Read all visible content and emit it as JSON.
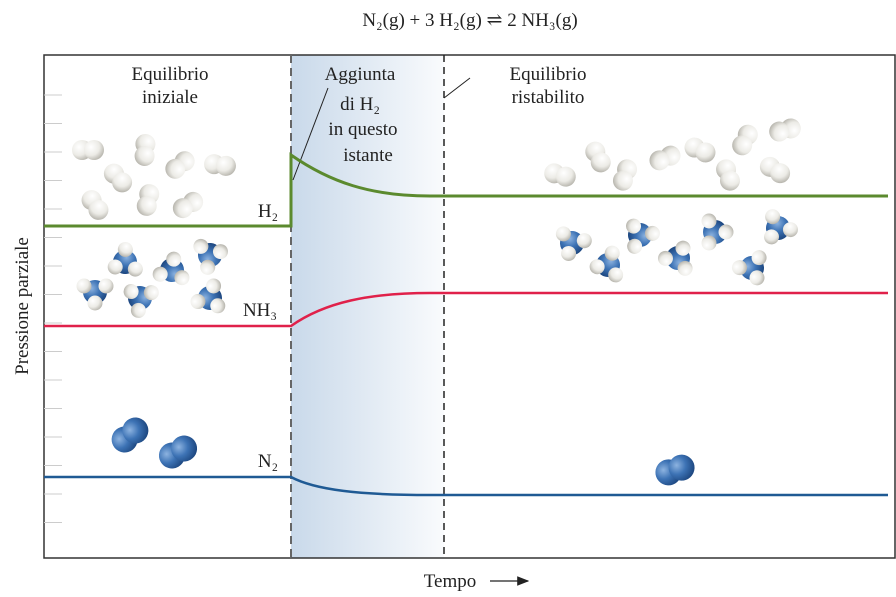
{
  "title": "N₂(g) + 3 H₂(g) ⇌ 2 NH₃(g)",
  "annotations": {
    "initial": [
      "Equilibrio",
      "iniziale"
    ],
    "addition": [
      "Aggiunta",
      "di H₂",
      "in questo",
      "istante"
    ],
    "restored": [
      "Equilibrio",
      "ristabilito"
    ]
  },
  "curves": {
    "h2": "H₂",
    "nh3": "NH₃",
    "n2": "N₂"
  },
  "axes": {
    "y_label": "Pressione parziale",
    "x_label": "Tempo"
  }
}
